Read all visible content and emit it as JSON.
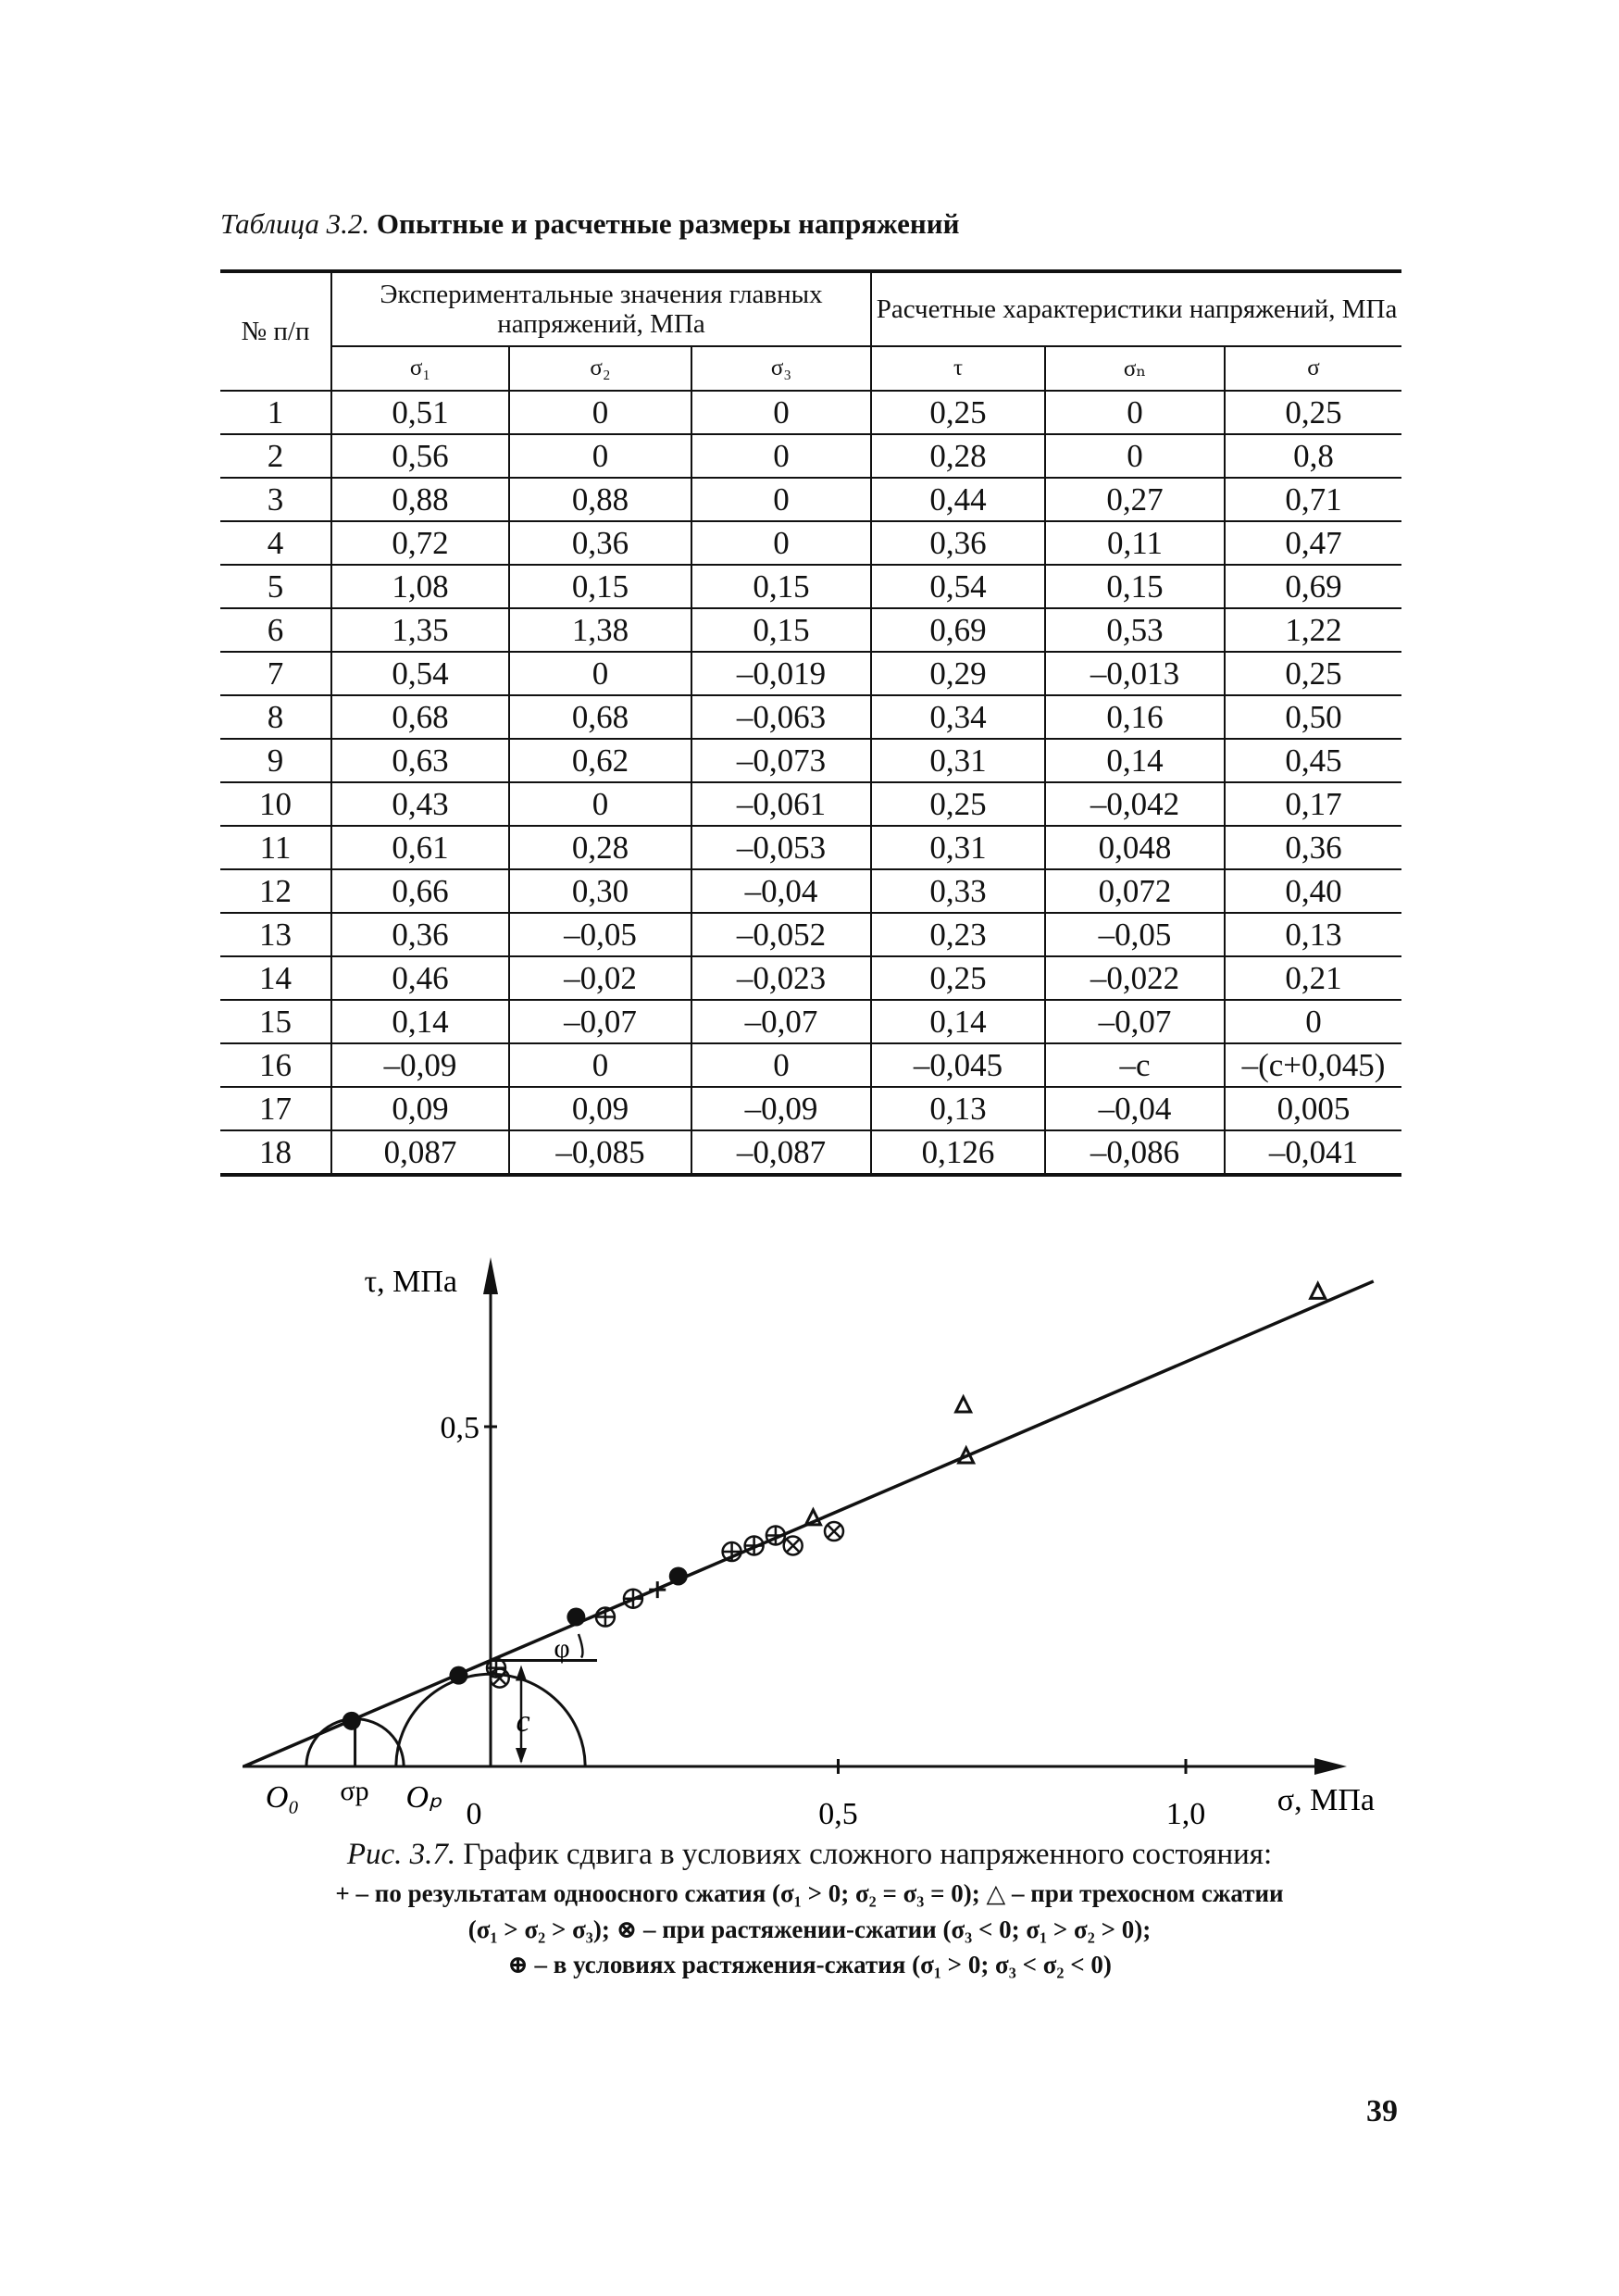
{
  "table": {
    "caption_prefix": "Таблица 3.2.",
    "caption_title": "Опытные и расчетные размеры напряжений",
    "col_num": "№ п/п",
    "group_exp": "Экспериментальные значения главных напряжений, МПа",
    "group_calc": "Расчетные характеристики напряжений, МПа",
    "subheaders": [
      "σ₁",
      "σ₂",
      "σ₃",
      "τ",
      "σₙ",
      "σ"
    ],
    "rows": [
      [
        "1",
        "0,51",
        "0",
        "0",
        "0,25",
        "0",
        "0,25"
      ],
      [
        "2",
        "0,56",
        "0",
        "0",
        "0,28",
        "0",
        "0,8"
      ],
      [
        "3",
        "0,88",
        "0,88",
        "0",
        "0,44",
        "0,27",
        "0,71"
      ],
      [
        "4",
        "0,72",
        "0,36",
        "0",
        "0,36",
        "0,11",
        "0,47"
      ],
      [
        "5",
        "1,08",
        "0,15",
        "0,15",
        "0,54",
        "0,15",
        "0,69"
      ],
      [
        "6",
        "1,35",
        "1,38",
        "0,15",
        "0,69",
        "0,53",
        "1,22"
      ],
      [
        "7",
        "0,54",
        "0",
        "–0,019",
        "0,29",
        "–0,013",
        "0,25"
      ],
      [
        "8",
        "0,68",
        "0,68",
        "–0,063",
        "0,34",
        "0,16",
        "0,50"
      ],
      [
        "9",
        "0,63",
        "0,62",
        "–0,073",
        "0,31",
        "0,14",
        "0,45"
      ],
      [
        "10",
        "0,43",
        "0",
        "–0,061",
        "0,25",
        "–0,042",
        "0,17"
      ],
      [
        "11",
        "0,61",
        "0,28",
        "–0,053",
        "0,31",
        "0,048",
        "0,36"
      ],
      [
        "12",
        "0,66",
        "0,30",
        "–0,04",
        "0,33",
        "0,072",
        "0,40"
      ],
      [
        "13",
        "0,36",
        "–0,05",
        "–0,052",
        "0,23",
        "–0,05",
        "0,13"
      ],
      [
        "14",
        "0,46",
        "–0,02",
        "–0,023",
        "0,25",
        "–0,022",
        "0,21"
      ],
      [
        "15",
        "0,14",
        "–0,07",
        "–0,07",
        "0,14",
        "–0,07",
        "0"
      ],
      [
        "16",
        "–0,09",
        "0",
        "0",
        "–0,045",
        "–c",
        "–(c+0,045)"
      ],
      [
        "17",
        "0,09",
        "0,09",
        "–0,09",
        "0,13",
        "–0,04",
        "0,005"
      ],
      [
        "18",
        "0,087",
        "–0,085",
        "–0,087",
        "0,126",
        "–0,086",
        "–0,041"
      ]
    ]
  },
  "chart_data": {
    "type": "scatter",
    "title": "Рис. 3.7. График сдвига в условиях сложного напряженного состояния:",
    "xlabel": "σ, МПа",
    "ylabel": "τ, МПа",
    "xlim": [
      -0.4,
      1.3
    ],
    "ylim": [
      0,
      0.75
    ],
    "x_ticks": [
      {
        "value": 0,
        "label": "0"
      },
      {
        "value": 0.5,
        "label": "0,5"
      },
      {
        "value": 1.0,
        "label": "1,0"
      }
    ],
    "y_ticks": [
      {
        "value": 0.5,
        "label": "0,5"
      }
    ],
    "fit_line": {
      "x": [
        -0.355,
        1.27
      ],
      "y": [
        0,
        0.714
      ]
    },
    "cohesion_c": 0.156,
    "annotations": {
      "O0": "O₀",
      "sigma_p": "σp",
      "Op": "Oₚ",
      "c": "c",
      "phi": "φ"
    },
    "mohr_circles": [
      {
        "center": -0.195,
        "radius": 0.07
      },
      {
        "center": 0.0,
        "radius": 0.136
      }
    ],
    "series": [
      {
        "name": "filled",
        "marker": "dot",
        "points": [
          [
            -0.2,
            0.067
          ],
          [
            -0.046,
            0.134
          ],
          [
            0.123,
            0.22
          ],
          [
            0.27,
            0.28
          ]
        ]
      },
      {
        "name": "растяжение-сжатие (σ1>0; σ3<σ2<0)",
        "marker": "oplus",
        "points": [
          [
            0.008,
            0.145
          ],
          [
            0.165,
            0.22
          ],
          [
            0.205,
            0.247
          ],
          [
            0.347,
            0.316
          ],
          [
            0.379,
            0.325
          ],
          [
            0.41,
            0.34
          ]
        ]
      },
      {
        "name": "растяжение-сжатие (σ3<0; σ1>σ2>0)",
        "marker": "otimes",
        "points": [
          [
            0.013,
            0.13
          ],
          [
            0.435,
            0.325
          ],
          [
            0.494,
            0.346
          ]
        ]
      },
      {
        "name": "одноосное сжатие",
        "marker": "plus",
        "points": [
          [
            0.24,
            0.26
          ]
        ]
      },
      {
        "name": "трехосное сжатие",
        "marker": "triangle",
        "points": [
          [
            0.464,
            0.364
          ],
          [
            0.684,
            0.455
          ],
          [
            0.68,
            0.53
          ],
          [
            1.19,
            0.697
          ]
        ]
      }
    ],
    "legend": [
      "+ – по результатам одноосного сжатия (σ₁ > 0; σ₂ = σ₃ = 0); △ – при трехосном сжатии",
      "(σ₁ > σ₂ > σ₃); ⊗ – при растяжении-сжатии (σ₃ < 0; σ₁ > σ₂ > 0);",
      "⊕ – в условиях растяжения-сжатия (σ₁ > 0; σ₃ < σ₂ < 0)"
    ],
    "title_prefix": "Рис. 3.7.",
    "title_text": "График сдвига в условиях сложного напряженного состояния:"
  },
  "page_number": "39"
}
